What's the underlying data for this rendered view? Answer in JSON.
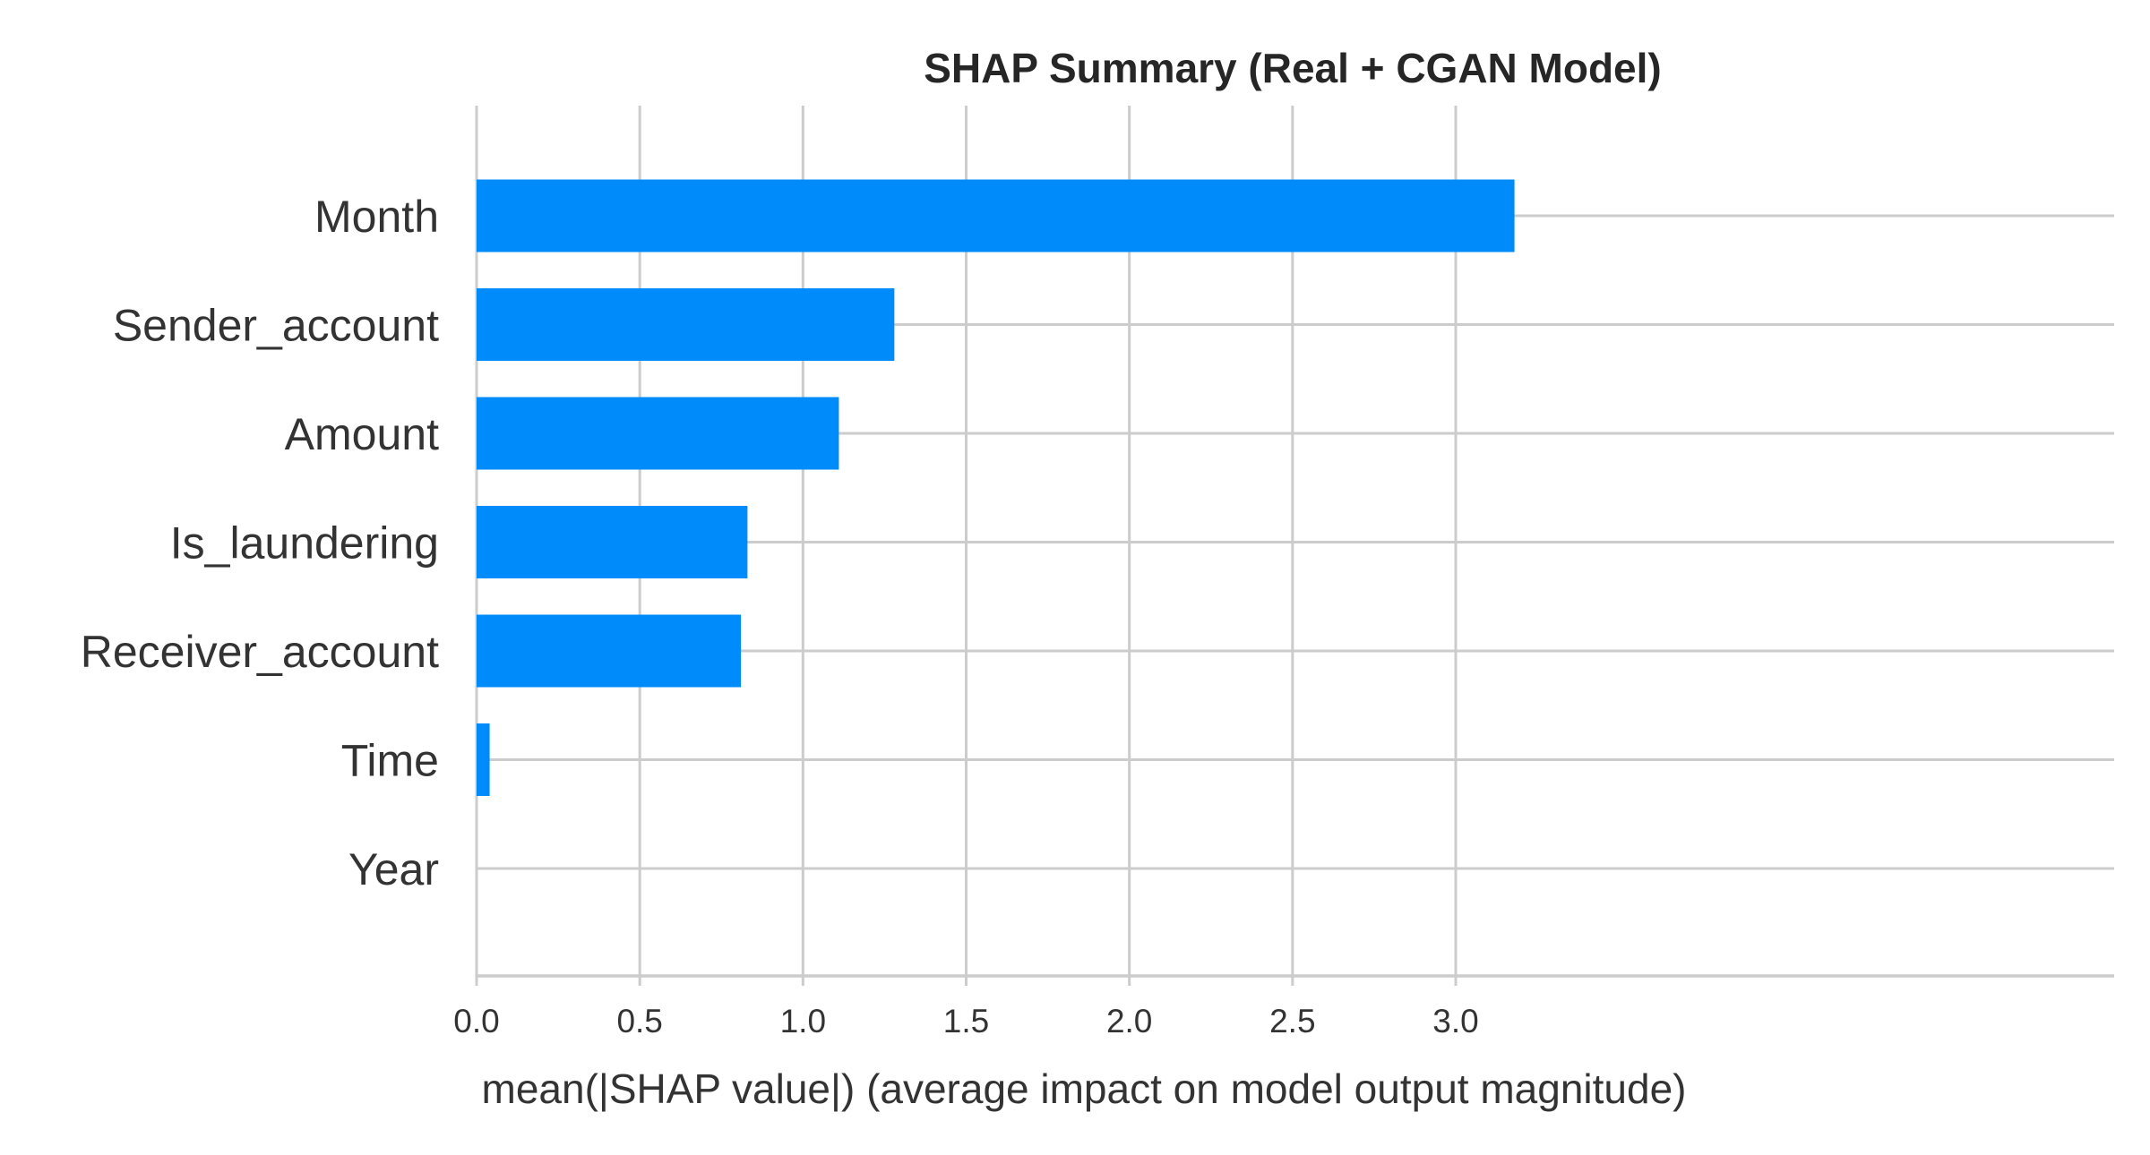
{
  "chart_data": {
    "type": "bar",
    "orientation": "horizontal",
    "title": "SHAP Summary (Real + CGAN Model)",
    "xlabel": "mean(|SHAP value|) (average impact on model output magnitude)",
    "ylabel": "",
    "categories": [
      "Month",
      "Sender_account",
      "Amount",
      "Is_laundering",
      "Receiver_account",
      "Time",
      "Year"
    ],
    "values": [
      3.18,
      1.28,
      1.11,
      0.83,
      0.81,
      0.04,
      0.0
    ],
    "xlim": [
      0,
      3.35
    ],
    "xticks": [
      0.0,
      0.5,
      1.0,
      1.5,
      2.0,
      2.5,
      3.0
    ],
    "xtick_labels": [
      "0.0",
      "0.5",
      "1.0",
      "1.5",
      "2.0",
      "2.5",
      "3.0"
    ],
    "grid": true,
    "bar_color": "#008bfb",
    "grid_color": "#cccccc"
  }
}
